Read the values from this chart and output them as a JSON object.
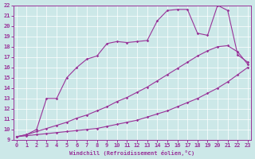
{
  "xlabel": "Windchill (Refroidissement éolien,°C)",
  "bg_color": "#cce8e8",
  "line_color": "#993399",
  "xmin": 0,
  "xmax": 23,
  "ymin": 9,
  "ymax": 22,
  "line1_x": [
    0,
    1,
    2,
    3,
    4,
    5,
    6,
    7,
    8,
    9,
    10,
    11,
    12,
    13,
    14,
    15,
    16,
    17,
    18,
    19,
    20,
    21,
    22,
    23
  ],
  "line1_y": [
    9.3,
    9.4,
    9.5,
    9.6,
    9.7,
    9.8,
    9.9,
    10.0,
    10.1,
    10.3,
    10.5,
    10.7,
    10.9,
    11.2,
    11.5,
    11.8,
    12.2,
    12.6,
    13.0,
    13.5,
    14.0,
    14.6,
    15.3,
    16.0
  ],
  "line2_x": [
    0,
    1,
    2,
    3,
    4,
    5,
    6,
    7,
    8,
    9,
    10,
    11,
    12,
    13,
    14,
    15,
    16,
    17,
    18,
    19,
    20,
    21,
    22,
    23
  ],
  "line2_y": [
    9.3,
    9.5,
    9.8,
    10.1,
    10.4,
    10.7,
    11.1,
    11.4,
    11.8,
    12.2,
    12.7,
    13.1,
    13.6,
    14.1,
    14.7,
    15.3,
    15.9,
    16.5,
    17.1,
    17.6,
    18.0,
    18.1,
    17.5,
    16.3
  ],
  "line3_x": [
    0,
    1,
    2,
    3,
    4,
    5,
    6,
    7,
    8,
    9,
    10,
    11,
    12,
    13,
    14,
    15,
    16,
    17,
    18,
    19,
    20,
    21,
    22,
    23
  ],
  "line3_y": [
    9.3,
    9.5,
    10.0,
    13.0,
    13.0,
    15.0,
    16.0,
    16.8,
    17.1,
    18.3,
    18.5,
    18.4,
    18.5,
    18.6,
    20.5,
    21.5,
    21.6,
    21.6,
    19.3,
    19.1,
    22.0,
    21.5,
    17.2,
    16.5
  ],
  "marker": "D",
  "markersize": 1.8,
  "linewidth": 0.8
}
